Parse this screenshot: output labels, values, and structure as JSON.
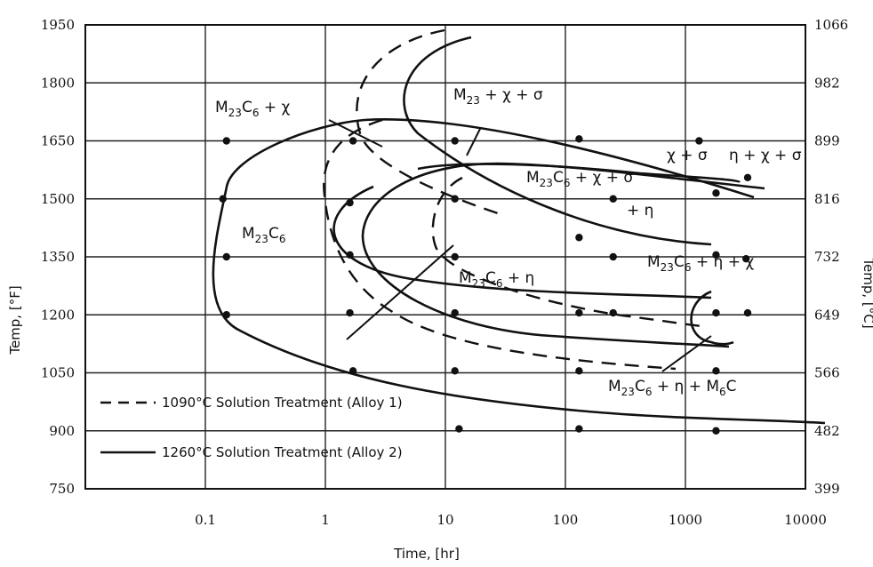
{
  "chart_data": {
    "type": "line",
    "x_axis": {
      "label": "Time, [hr]",
      "scale": "log",
      "range": [
        0.01,
        10000
      ],
      "ticks": [
        "0.1",
        "1",
        "10",
        "100",
        "1000",
        "10000"
      ]
    },
    "y_axis_left": {
      "label": "Temp, [°F]",
      "range": [
        750,
        1950
      ],
      "ticks": [
        "750",
        "900",
        "1050",
        "1200",
        "1350",
        "1500",
        "1650",
        "1800",
        "1950"
      ]
    },
    "y_axis_right": {
      "label": "Temp, [°C]",
      "ticks": [
        "399",
        "482",
        "566",
        "649",
        "732",
        "816",
        "899",
        "982",
        "1066"
      ]
    },
    "grid": true,
    "legend": {
      "placement": "bottom-left",
      "entries": [
        {
          "style": "dashed",
          "label": "1090°C Solution Treatment (Alloy 1)"
        },
        {
          "style": "solid",
          "label": "1260°C Solution Treatment (Alloy 2)"
        }
      ]
    },
    "phase_labels": {
      "m23c6": [
        "M",
        "23",
        "C",
        "6",
        ""
      ],
      "m23c6_chi": [
        "M",
        "23",
        "C",
        "6",
        " + χ"
      ],
      "m23_chi_sigma": [
        "M",
        "23",
        " + χ + σ"
      ],
      "chi_sigma": "χ + σ",
      "eta_chi_sigma": "η + χ + σ",
      "m23c6_chi_sigma_eta_1": [
        "M",
        "23",
        "C",
        "6",
        " + χ + σ"
      ],
      "m23c6_chi_sigma_eta_2": "+ η",
      "m23c6_eta_chi": [
        "M",
        "23",
        "C",
        "6",
        " + η + χ"
      ],
      "m23c6_eta": [
        "M",
        "23",
        "C",
        "6",
        " + η"
      ],
      "m23c6_eta_m6c": [
        "M",
        "23",
        "C",
        "6",
        " + η + M",
        "6",
        "C"
      ]
    },
    "data_points": [
      {
        "x": 0.15,
        "y": 1650
      },
      {
        "x": 0.14,
        "y": 1500
      },
      {
        "x": 0.15,
        "y": 1350
      },
      {
        "x": 0.15,
        "y": 1200
      },
      {
        "x": 1.7,
        "y": 1650
      },
      {
        "x": 1.6,
        "y": 1490
      },
      {
        "x": 1.6,
        "y": 1355
      },
      {
        "x": 1.6,
        "y": 1205
      },
      {
        "x": 1.7,
        "y": 1055
      },
      {
        "x": 12,
        "y": 1650
      },
      {
        "x": 12,
        "y": 1500
      },
      {
        "x": 12,
        "y": 1350
      },
      {
        "x": 12,
        "y": 1205
      },
      {
        "x": 12,
        "y": 1055
      },
      {
        "x": 13,
        "y": 905
      },
      {
        "x": 130,
        "y": 1655
      },
      {
        "x": 130,
        "y": 1400
      },
      {
        "x": 130,
        "y": 1205
      },
      {
        "x": 130,
        "y": 1055
      },
      {
        "x": 130,
        "y": 905
      },
      {
        "x": 250,
        "y": 1500
      },
      {
        "x": 250,
        "y": 1350
      },
      {
        "x": 250,
        "y": 1205
      },
      {
        "x": 1300,
        "y": 1650
      },
      {
        "x": 1800,
        "y": 1515
      },
      {
        "x": 1800,
        "y": 1355
      },
      {
        "x": 1800,
        "y": 1205
      },
      {
        "x": 1800,
        "y": 1055
      },
      {
        "x": 1800,
        "y": 900
      },
      {
        "x": 3300,
        "y": 1555
      },
      {
        "x": 3200,
        "y": 1345
      },
      {
        "x": 3300,
        "y": 1205
      }
    ]
  }
}
